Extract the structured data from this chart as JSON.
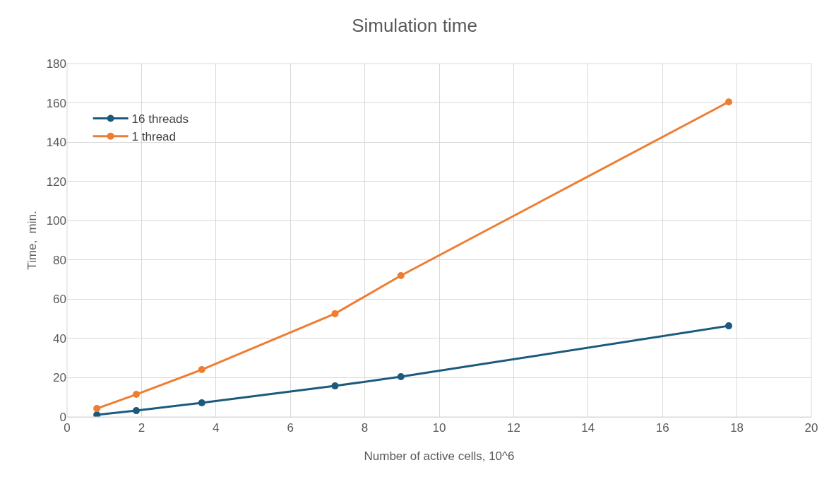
{
  "chart_data": {
    "type": "line",
    "title": "Simulation time",
    "xlabel": "Number of active cells, 10^6",
    "ylabel": "Time,  min.",
    "x": [
      0.8,
      1.86,
      3.62,
      7.2,
      8.97,
      17.78
    ],
    "series": [
      {
        "name": "16 threads",
        "color": "#1c5a7d",
        "values": [
          1.1,
          3.2,
          7.2,
          15.8,
          20.5,
          46.4
        ]
      },
      {
        "name": "1 thread",
        "color": "#ee7d31",
        "values": [
          4.3,
          11.5,
          24.1,
          52.6,
          72,
          160.5
        ]
      }
    ],
    "xlim": [
      0,
      20
    ],
    "xticks": [
      0,
      2,
      4,
      6,
      8,
      10,
      12,
      14,
      16,
      18,
      20
    ],
    "ylim": [
      0,
      180
    ],
    "yticks": [
      0,
      20,
      40,
      60,
      80,
      100,
      120,
      140,
      160,
      180
    ],
    "grid": true,
    "legend": "top left",
    "marker": "circle",
    "line_style": "solid"
  }
}
